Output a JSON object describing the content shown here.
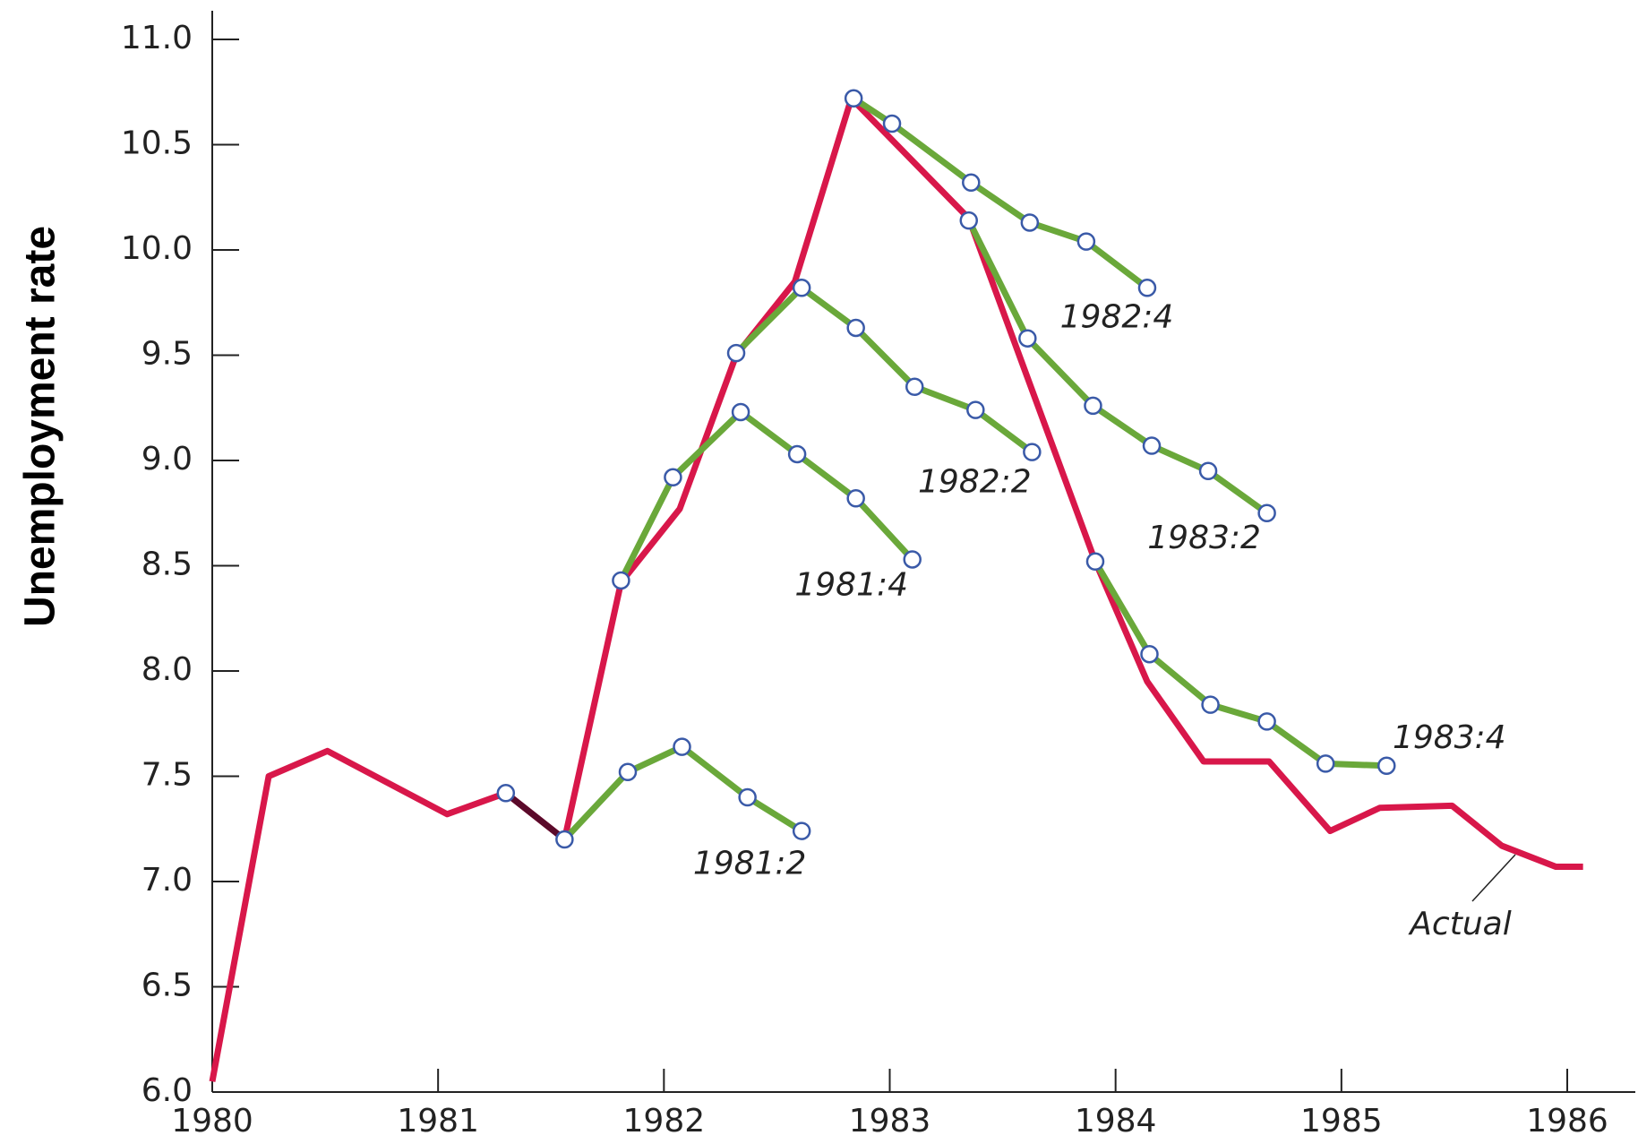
{
  "chart_data": {
    "type": "line",
    "y_label": "Unemployment rate",
    "xlim": [
      1980,
      1986
    ],
    "xticks": [
      1980,
      1981,
      1982,
      1983,
      1984,
      1985,
      1986
    ],
    "ylim": [
      6,
      11
    ],
    "yticks": [
      {
        "value": 6,
        "label": "6.0"
      },
      6.5,
      {
        "value": 7,
        "label": "7.0"
      },
      7.5,
      {
        "value": 8,
        "label": "8.0"
      },
      8.5,
      {
        "value": 9,
        "label": "9.0"
      },
      9.5,
      {
        "value": 10,
        "label": "10.0"
      },
      10.5,
      {
        "value": 11,
        "label": "11.0"
      }
    ],
    "series": [
      {
        "name": "Actual",
        "color": "#d8174a",
        "markers": false,
        "x": [
          1980.0,
          1980.25,
          1980.51,
          1981.04,
          1981.3,
          1981.56,
          1981.81,
          1982.07,
          1982.32,
          1982.58,
          1982.83,
          1983.35,
          1983.91,
          1984.14,
          1984.39,
          1984.68,
          1984.95,
          1985.17,
          1985.49,
          1985.71,
          1985.95,
          1986.07
        ],
        "values": [
          6.05,
          7.5,
          7.62,
          7.32,
          7.42,
          7.2,
          8.42,
          8.77,
          9.5,
          9.85,
          10.72,
          10.15,
          8.52,
          7.95,
          7.57,
          7.57,
          7.24,
          7.35,
          7.36,
          7.17,
          7.07,
          7.07
        ]
      },
      {
        "name": "1981:2",
        "color": "#6aa83a",
        "lead_color": "#5a0a2a",
        "markers": true,
        "x": [
          1981.3,
          1981.56,
          1981.84,
          1982.08,
          1982.37,
          1982.61
        ],
        "values": [
          7.42,
          7.2,
          7.52,
          7.64,
          7.4,
          7.24
        ]
      },
      {
        "name": "1981:4",
        "color": "#6aa83a",
        "markers": true,
        "x": [
          1981.81,
          1982.04,
          1982.34,
          1982.59,
          1982.85,
          1983.1
        ],
        "values": [
          8.43,
          8.92,
          9.23,
          9.03,
          8.82,
          8.53
        ]
      },
      {
        "name": "1982:2",
        "color": "#6aa83a",
        "markers": true,
        "x": [
          1982.32,
          1982.61,
          1982.85,
          1983.11,
          1983.38,
          1983.63
        ],
        "values": [
          9.51,
          9.82,
          9.63,
          9.35,
          9.24,
          9.04
        ]
      },
      {
        "name": "1982:4",
        "color": "#6aa83a",
        "markers": true,
        "x": [
          1982.84,
          1983.01,
          1983.36,
          1983.62,
          1983.87,
          1984.14
        ],
        "values": [
          10.72,
          10.6,
          10.32,
          10.13,
          10.04,
          9.82
        ]
      },
      {
        "name": "1983:2",
        "color": "#6aa83a",
        "markers": true,
        "x": [
          1983.35,
          1983.61,
          1983.9,
          1984.16,
          1984.41,
          1984.67
        ],
        "values": [
          10.14,
          9.58,
          9.26,
          9.07,
          8.95,
          8.75
        ]
      },
      {
        "name": "1983:4",
        "color": "#6aa83a",
        "markers": true,
        "x": [
          1983.91,
          1984.15,
          1984.42,
          1984.67,
          1984.93,
          1985.2
        ],
        "values": [
          8.52,
          8.08,
          7.84,
          7.76,
          7.56,
          7.55
        ]
      }
    ]
  }
}
